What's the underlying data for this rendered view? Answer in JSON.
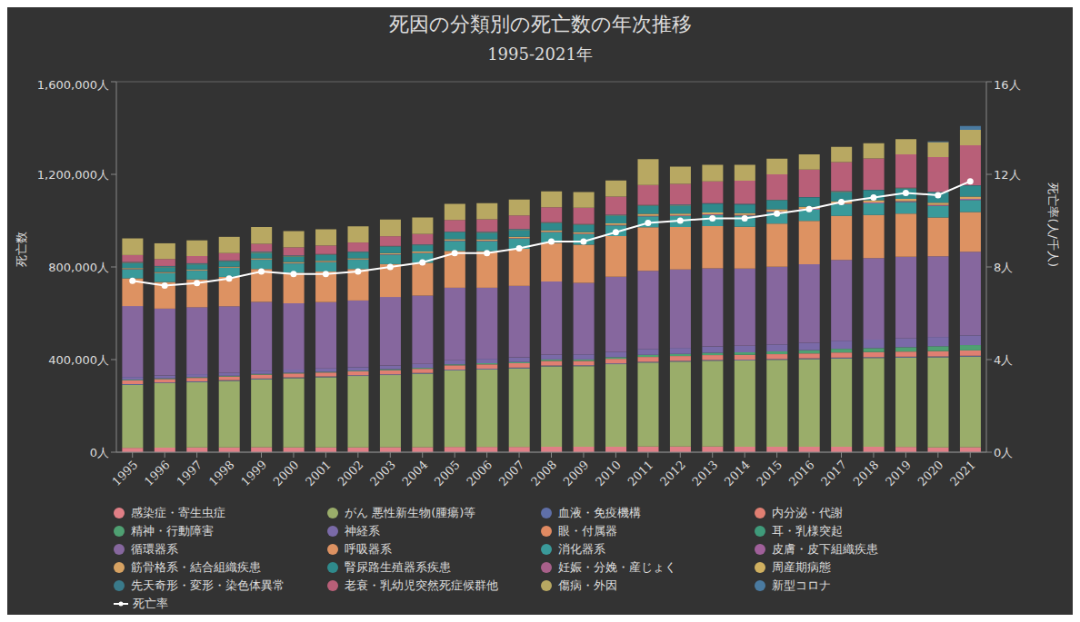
{
  "chart_data": {
    "type": "bar",
    "title": "死因の分類別の死亡数の年次推移",
    "subtitle": "1995-2021年",
    "y_label": "死亡数",
    "y2_label": "死亡率(人/千人)",
    "stacked": true,
    "grid": true,
    "legend": "bottom",
    "categories": [
      "1995",
      "1996",
      "1997",
      "1998",
      "1999",
      "2000",
      "2001",
      "2002",
      "2003",
      "2004",
      "2005",
      "2006",
      "2007",
      "2008",
      "2009",
      "2010",
      "2011",
      "2012",
      "2013",
      "2014",
      "2015",
      "2016",
      "2017",
      "2018",
      "2019",
      "2020",
      "2021"
    ],
    "ylim": [
      0,
      1600000
    ],
    "yticks": [
      {
        "value": 0,
        "label": "0人"
      },
      {
        "value": 400000,
        "label": "400,000人"
      },
      {
        "value": 800000,
        "label": "800,000人"
      },
      {
        "value": 1200000,
        "label": "1,200,000人"
      },
      {
        "value": 1600000,
        "label": "1,600,000人"
      }
    ],
    "y2lim": [
      0,
      16
    ],
    "y2ticks": [
      {
        "value": 0,
        "label": "0人"
      },
      {
        "value": 4,
        "label": "4人"
      },
      {
        "value": 8,
        "label": "8人"
      },
      {
        "value": 12,
        "label": "12人"
      },
      {
        "value": 16,
        "label": "16人"
      }
    ],
    "series": [
      {
        "name": "感染症・寄生虫症",
        "color": "#e07f86",
        "values": [
          19000,
          20000,
          21000,
          21000,
          22000,
          21000,
          21000,
          21000,
          22000,
          22000,
          23000,
          23000,
          23000,
          24000,
          24000,
          24000,
          25000,
          25000,
          25000,
          24000,
          24000,
          24000,
          24000,
          24000,
          23000,
          21000,
          22000
        ]
      },
      {
        "name": "がん 悪性新生物(腫瘍)等",
        "color": "#9aad6a",
        "values": [
          272000,
          278000,
          282000,
          287000,
          293000,
          299000,
          303000,
          308000,
          311000,
          317000,
          330000,
          334000,
          339000,
          347000,
          348000,
          356000,
          362000,
          366000,
          370000,
          372000,
          375000,
          378000,
          381000,
          383000,
          386000,
          389000,
          391000
        ]
      },
      {
        "name": "血液・免疫機構",
        "color": "#5f6fa8",
        "values": [
          3000,
          3000,
          3000,
          3100,
          3100,
          3100,
          3200,
          3200,
          3200,
          3200,
          3300,
          3300,
          3300,
          3300,
          3300,
          3400,
          3400,
          3400,
          3400,
          3400,
          3400,
          3500,
          3500,
          3500,
          3500,
          3600,
          3600
        ]
      },
      {
        "name": "内分泌・代謝",
        "color": "#e07f72",
        "values": [
          16000,
          15000,
          15000,
          16000,
          17000,
          17000,
          17000,
          17000,
          18000,
          18000,
          19000,
          19000,
          19000,
          20000,
          19000,
          20000,
          21000,
          21000,
          21000,
          21000,
          21000,
          21000,
          22000,
          22000,
          22000,
          23000,
          23000
        ]
      },
      {
        "name": "精神・行動障害",
        "color": "#4fa072",
        "values": [
          3000,
          3000,
          3000,
          3000,
          3000,
          3000,
          3000,
          3000,
          4000,
          4000,
          4000,
          5000,
          5000,
          6000,
          6000,
          7000,
          9000,
          9000,
          10000,
          11000,
          12000,
          14000,
          16000,
          17000,
          19000,
          21000,
          23000
        ]
      },
      {
        "name": "神経系",
        "color": "#7a6aa8",
        "values": [
          12000,
          12000,
          13000,
          13000,
          14000,
          14000,
          15000,
          15000,
          16000,
          17000,
          18000,
          19000,
          20000,
          21000,
          22000,
          23000,
          25000,
          26000,
          27000,
          28000,
          30000,
          32000,
          35000,
          37000,
          39000,
          40000,
          42000
        ]
      },
      {
        "name": "眼・付属器",
        "color": "#e08a62",
        "values": [
          0,
          0,
          0,
          0,
          0,
          0,
          0,
          0,
          0,
          0,
          0,
          0,
          0,
          0,
          0,
          0,
          0,
          0,
          0,
          0,
          0,
          0,
          0,
          0,
          0,
          0,
          0
        ]
      },
      {
        "name": "耳・乳様突起",
        "color": "#3f9a7a",
        "values": [
          20,
          20,
          20,
          25,
          25,
          25,
          25,
          25,
          25,
          25,
          30,
          30,
          30,
          30,
          30,
          30,
          30,
          30,
          30,
          30,
          30,
          30,
          30,
          30,
          30,
          30,
          30
        ]
      },
      {
        "name": "循環器系",
        "color": "#86679e",
        "values": [
          306000,
          289000,
          289000,
          287000,
          297000,
          286000,
          286000,
          288000,
          296000,
          295000,
          313000,
          307000,
          309000,
          316000,
          309000,
          324000,
          338000,
          339000,
          338000,
          334000,
          336000,
          339000,
          349000,
          352000,
          352000,
          348000,
          361000
        ]
      },
      {
        "name": "呼吸器系",
        "color": "#dd9262",
        "values": [
          120000,
          115000,
          120000,
          127000,
          142000,
          132000,
          132000,
          136000,
          142000,
          142000,
          159000,
          158000,
          160000,
          167000,
          165000,
          176000,
          188000,
          183000,
          182000,
          180000,
          186000,
          187000,
          190000,
          186000,
          186000,
          168000,
          172000
        ]
      },
      {
        "name": "消化器系",
        "color": "#3a9a9a",
        "values": [
          39000,
          38000,
          38000,
          39000,
          40000,
          40000,
          40000,
          40000,
          41000,
          41000,
          43000,
          43000,
          44000,
          45000,
          45000,
          46000,
          47000,
          47000,
          48000,
          48000,
          49000,
          49000,
          50000,
          50000,
          50000,
          50000,
          52000
        ]
      },
      {
        "name": "皮膚・皮下組織疾患",
        "color": "#a0609a",
        "values": [
          1000,
          1000,
          1000,
          1000,
          1100,
          1100,
          1200,
          1200,
          1500,
          1500,
          1700,
          1800,
          1900,
          2000,
          2100,
          2200,
          2600,
          2700,
          2800,
          3000,
          3100,
          3200,
          3400,
          3500,
          3700,
          3800,
          4000
        ]
      },
      {
        "name": "筋骨格系・結合組織疾患",
        "color": "#d7a262",
        "values": [
          4000,
          4000,
          4000,
          4000,
          5000,
          5000,
          5000,
          5000,
          5000,
          6000,
          6000,
          6000,
          6000,
          7000,
          7000,
          7000,
          8000,
          8000,
          8000,
          8000,
          9000,
          9000,
          9000,
          10000,
          10000,
          10000,
          10000
        ]
      },
      {
        "name": "腎尿路生殖器系疾患",
        "color": "#2f8a8c",
        "values": [
          21000,
          21000,
          22000,
          22000,
          24000,
          24000,
          25000,
          25000,
          27000,
          27000,
          29000,
          29000,
          30000,
          32000,
          32000,
          34000,
          36000,
          36000,
          37000,
          37000,
          39000,
          40000,
          42000,
          43000,
          45000,
          45000,
          47000
        ]
      },
      {
        "name": "妊娠・分娩・産じょく",
        "color": "#a8608a",
        "values": [
          85,
          78,
          78,
          86,
          76,
          78,
          76,
          84,
          69,
          49,
          62,
          54,
          35,
          39,
          53,
          45,
          41,
          42,
          36,
          42,
          39,
          34,
          33,
          31,
          29,
          23,
          21
        ]
      },
      {
        "name": "周産期病態",
        "color": "#d0b060",
        "values": [
          1800,
          1700,
          1600,
          1600,
          1500,
          1400,
          1300,
          1200,
          1100,
          1000,
          900,
          850,
          800,
          750,
          700,
          700,
          650,
          650,
          600,
          600,
          600,
          550,
          550,
          550,
          500,
          500,
          500
        ]
      },
      {
        "name": "先天奇形・変形・染色体異常",
        "color": "#3a7a8a",
        "values": [
          3500,
          3400,
          3300,
          3200,
          3100,
          3000,
          2900,
          2900,
          2800,
          2700,
          2700,
          2600,
          2500,
          2500,
          2400,
          2400,
          2300,
          2300,
          2200,
          2200,
          2200,
          2100,
          2100,
          2100,
          2000,
          2000,
          2000
        ]
      },
      {
        "name": "老衰・乳幼児突然死症候群他",
        "color": "#b85f78",
        "values": [
          30000,
          30000,
          31000,
          32000,
          34000,
          35000,
          37000,
          39000,
          42000,
          45000,
          50000,
          54000,
          59000,
          64000,
          70000,
          78000,
          86000,
          90000,
          95000,
          100000,
          110000,
          118000,
          125000,
          135000,
          145000,
          150000,
          172000
        ]
      },
      {
        "name": "傷病・外因",
        "color": "#b8a862",
        "values": [
          72000,
          68000,
          68000,
          70000,
          73000,
          70000,
          70000,
          70000,
          72000,
          71000,
          70000,
          70000,
          69000,
          69000,
          68000,
          70000,
          112000,
          74000,
          71000,
          69000,
          67000,
          66000,
          66000,
          66000,
          65000,
          64000,
          67000
        ]
      },
      {
        "name": "新型コロナ",
        "color": "#4a7aa0",
        "values": [
          0,
          0,
          0,
          0,
          0,
          0,
          0,
          0,
          0,
          0,
          0,
          0,
          0,
          0,
          0,
          0,
          0,
          0,
          0,
          0,
          0,
          0,
          0,
          0,
          0,
          3466,
          16766
        ]
      },
      {
        "name": "死亡率",
        "type": "line",
        "axis": "y2",
        "color": "#ffffff",
        "marker": "circle",
        "values": [
          7.4,
          7.2,
          7.3,
          7.5,
          7.8,
          7.7,
          7.7,
          7.8,
          8.0,
          8.2,
          8.6,
          8.6,
          8.8,
          9.1,
          9.1,
          9.5,
          9.9,
          10.0,
          10.1,
          10.1,
          10.3,
          10.5,
          10.8,
          11.0,
          11.2,
          11.1,
          11.7
        ]
      }
    ]
  }
}
